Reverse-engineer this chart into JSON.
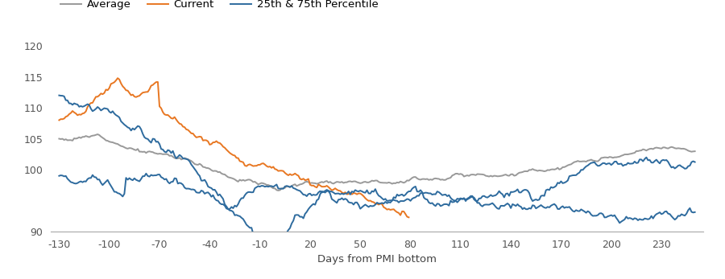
{
  "xlabel": "Days from PMI bottom",
  "xlim": [
    -135,
    255
  ],
  "ylim": [
    90,
    122
  ],
  "xticks": [
    -130,
    -100,
    -70,
    -40,
    -10,
    20,
    50,
    80,
    110,
    140,
    170,
    200,
    230
  ],
  "yticks": [
    90,
    95,
    100,
    105,
    110,
    115,
    120
  ],
  "ytick_labels": [
    "90",
    "",
    "100",
    "105",
    "110",
    "115",
    "120"
  ],
  "legend": [
    {
      "label": "Average",
      "color": "#999999",
      "lw": 1.4
    },
    {
      "label": "Current",
      "color": "#E87722",
      "lw": 1.4
    },
    {
      "label": "25th & 75th Percentile",
      "color": "#2E6B9E",
      "lw": 1.4
    }
  ],
  "bg_color": "#FFFFFF",
  "seed": 12
}
